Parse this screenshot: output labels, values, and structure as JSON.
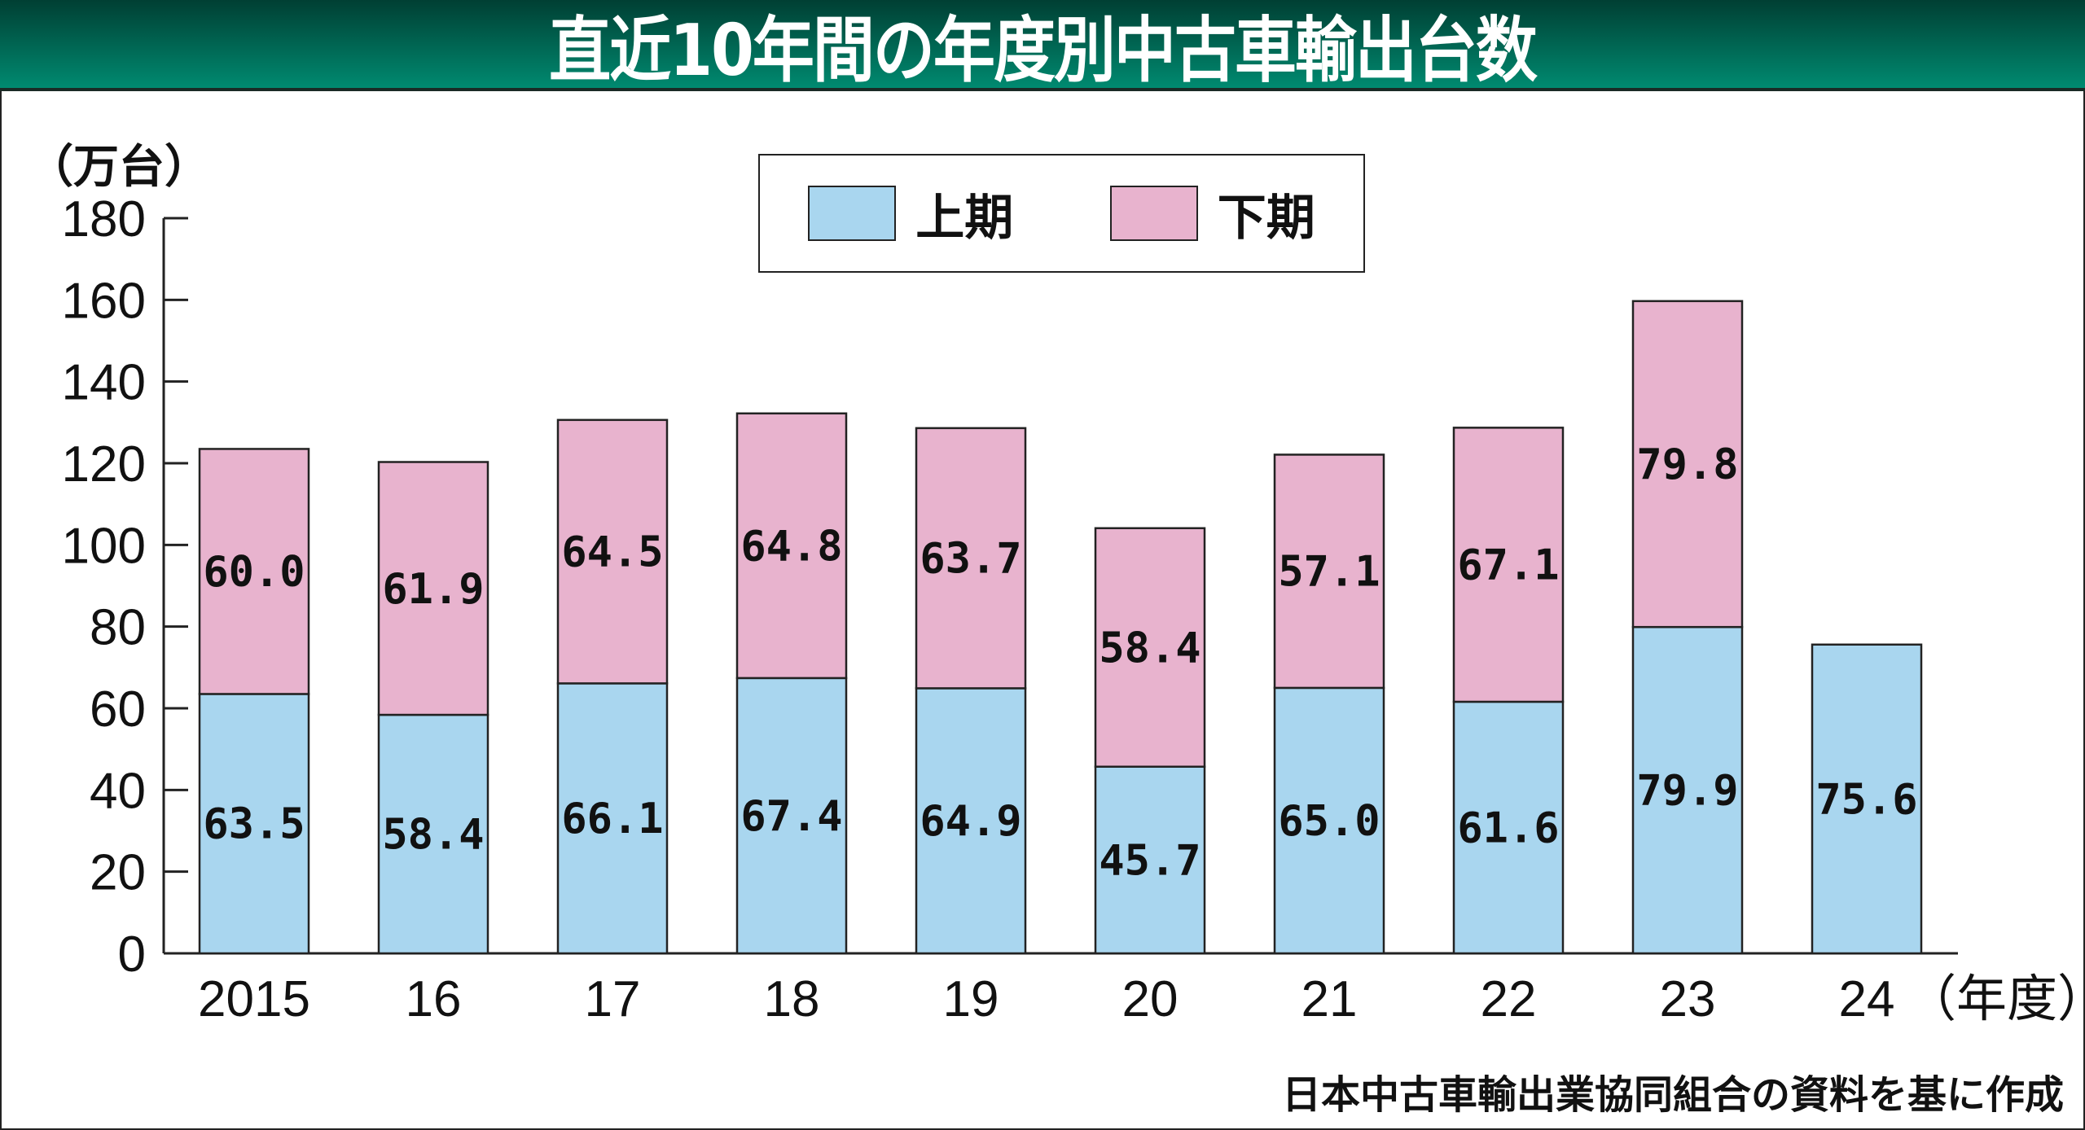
{
  "title": "直近10年間の年度別中古車輸出台数",
  "source": "日本中古車輸出業協同組合の資料を基に作成",
  "chart_data": {
    "type": "bar",
    "stacked": true,
    "title": "直近10年間の年度別中古車輸出台数",
    "ylabel": "（万台）",
    "xlabel": "（年度）",
    "ylim": [
      0,
      180
    ],
    "yticks": [
      0,
      20,
      40,
      60,
      80,
      100,
      120,
      140,
      160,
      180
    ],
    "categories": [
      "2015",
      "16",
      "17",
      "18",
      "19",
      "20",
      "21",
      "22",
      "23",
      "24"
    ],
    "series": [
      {
        "name": "上期",
        "color": "#a9d6ef",
        "values": [
          63.5,
          58.4,
          66.1,
          67.4,
          64.9,
          45.7,
          65.0,
          61.6,
          79.9,
          75.6
        ],
        "labels": [
          "63.5",
          "58.4",
          "66.1",
          "67.4",
          "64.9",
          "45.7",
          "65.0",
          "61.6",
          "79.9",
          "75.6"
        ]
      },
      {
        "name": "下期",
        "color": "#e8b3ce",
        "values": [
          60.0,
          61.9,
          64.5,
          64.8,
          63.7,
          58.4,
          57.1,
          67.1,
          79.8,
          null
        ],
        "labels": [
          "60.0",
          "61.9",
          "64.5",
          "64.8",
          "63.7",
          "58.4",
          "57.1",
          "67.1",
          "79.8",
          null
        ]
      }
    ],
    "legend": "top-center"
  }
}
